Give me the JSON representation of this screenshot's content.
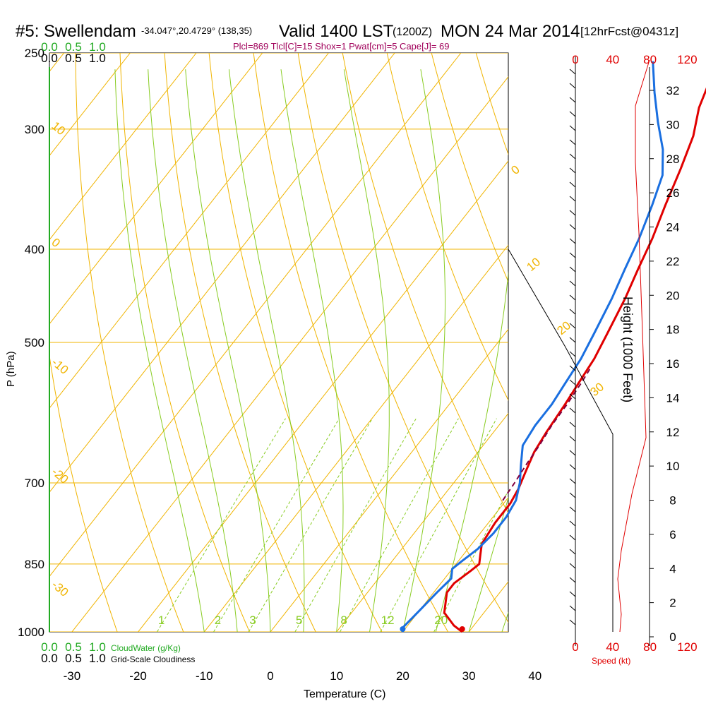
{
  "header": {
    "station": "#5: Swellendam",
    "coords": "-34.047°,20.4729° (138,35)",
    "valid": "Valid 1400 LST",
    "zulu": "(1200Z)",
    "date": "MON 24 Mar 2014",
    "forecast": "[12hrFcst@0431z]",
    "indices": "Plcl=869 Tlcl[C]=15 Shox=1 Pwat[cm]=5 Cape[J]= 69"
  },
  "chart_data": {
    "type": "line",
    "title": "#5: Swellendam",
    "xlabel": "Temperature (C)",
    "ylabel": "P (hPa)",
    "y2label": "Height (1000 Feet)",
    "x_ticks": [
      -30,
      -20,
      -10,
      0,
      10,
      20,
      30,
      40
    ],
    "p_ticks": [
      250,
      300,
      400,
      500,
      700,
      850,
      1000
    ],
    "xlim": [
      -34,
      52
    ],
    "plim": [
      250,
      1000
    ],
    "height_ticks": [
      0,
      2,
      4,
      6,
      8,
      10,
      12,
      14,
      16,
      18,
      20,
      22,
      24,
      26,
      28,
      30,
      32
    ],
    "isotherm_labels": [
      "0",
      "10",
      "20",
      "30"
    ],
    "dry_adiabat_labels": [
      "10",
      "0",
      "-10",
      "-20",
      "-30"
    ],
    "mixing_ratio_labels": [
      "1",
      "2",
      "3",
      "5",
      "8",
      "12",
      "20"
    ],
    "speed_ticks": [
      "0",
      "40",
      "80",
      "120"
    ],
    "speed_label": "Speed (kt)",
    "cloud_ticks": [
      "0.0",
      "0.5",
      "1.0"
    ],
    "cloudwater_label": "CloudWater (g/Kg)",
    "cloudiness_label": "Grid-Scale Cloudiness",
    "series": [
      {
        "name": "Temperature",
        "color": "#e00000",
        "points": [
          [
            29,
            1000
          ],
          [
            27,
            985
          ],
          [
            24,
            955
          ],
          [
            22,
            910
          ],
          [
            22,
            890
          ],
          [
            23,
            865
          ],
          [
            23.5,
            850
          ],
          [
            22.5,
            830
          ],
          [
            21.5,
            810
          ],
          [
            21,
            770
          ],
          [
            21,
            735
          ],
          [
            20.5,
            710
          ],
          [
            19.5,
            680
          ],
          [
            18.5,
            650
          ],
          [
            18,
            620
          ],
          [
            17.5,
            580
          ],
          [
            17,
            550
          ],
          [
            16.5,
            520
          ],
          [
            15.5,
            490
          ],
          [
            14,
            450
          ],
          [
            12.5,
            420
          ],
          [
            11,
            390
          ],
          [
            9,
            360
          ],
          [
            7,
            330
          ],
          [
            5,
            305
          ],
          [
            2.5,
            285
          ],
          [
            1,
            268
          ],
          [
            -0.5,
            255
          ]
        ]
      },
      {
        "name": "Dewpoint",
        "color": "#1a6fe0",
        "points": [
          [
            20,
            1000
          ],
          [
            19.5,
            990
          ],
          [
            20,
            950
          ],
          [
            20.5,
            910
          ],
          [
            21,
            880
          ],
          [
            20,
            860
          ],
          [
            20.5,
            845
          ],
          [
            21.5,
            820
          ],
          [
            22,
            790
          ],
          [
            22,
            760
          ],
          [
            21.5,
            730
          ],
          [
            20,
            700
          ],
          [
            18,
            670
          ],
          [
            16,
            640
          ],
          [
            15.5,
            610
          ],
          [
            15.5,
            580
          ],
          [
            15,
            550
          ],
          [
            14.5,
            520
          ],
          [
            13.5,
            490
          ],
          [
            12,
            450
          ],
          [
            10.5,
            420
          ],
          [
            9,
            390
          ],
          [
            7,
            360
          ],
          [
            5,
            335
          ],
          [
            2,
            315
          ],
          [
            -2,
            295
          ],
          [
            -6,
            275
          ],
          [
            -10,
            255
          ]
        ]
      },
      {
        "name": "Parcel",
        "color": "#800040",
        "points": [
          [
            19.5,
            730
          ],
          [
            19.2,
            700
          ],
          [
            18.8,
            670
          ],
          [
            18.5,
            640
          ],
          [
            18,
            610
          ],
          [
            17.8,
            580
          ],
          [
            17.4,
            550
          ],
          [
            17,
            530
          ]
        ]
      }
    ],
    "surface_temp": 29,
    "surface_dewpoint": 20,
    "cloudwater_profile": []
  }
}
